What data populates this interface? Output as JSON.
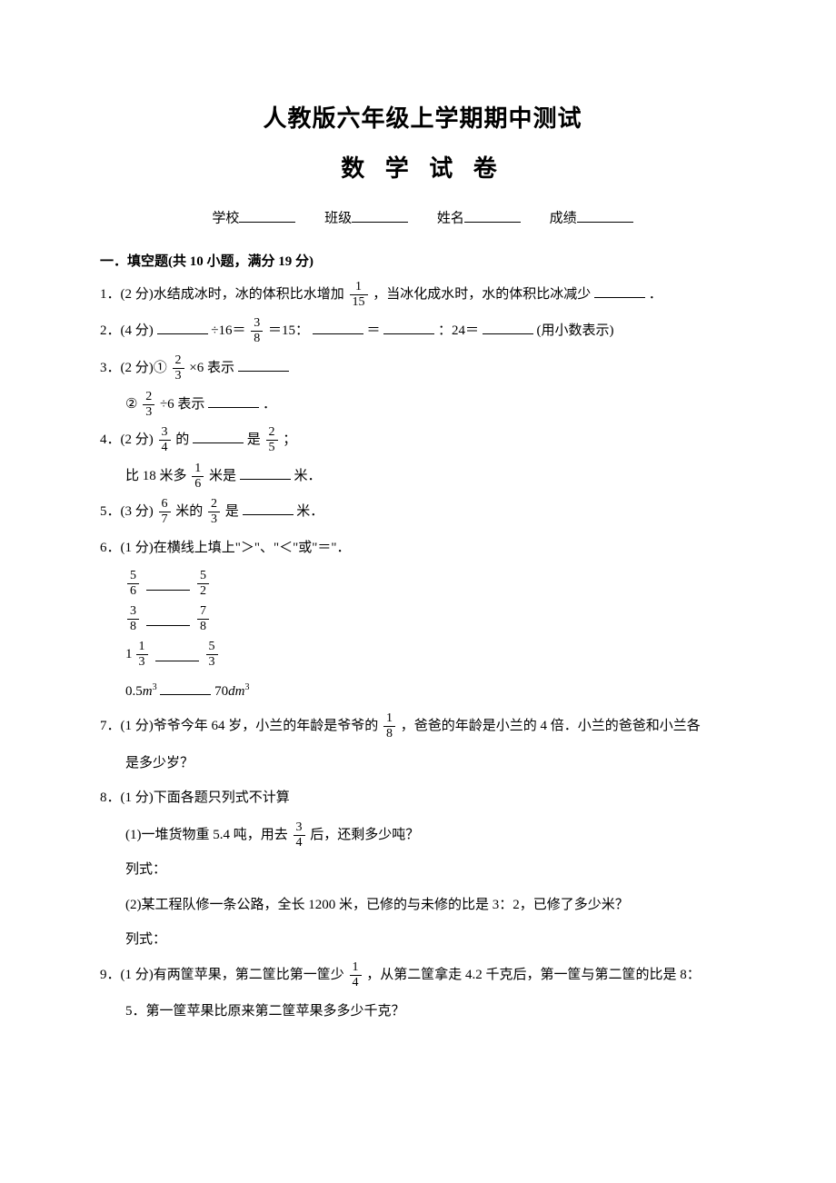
{
  "title_main": "人教版六年级上学期期中测试",
  "title_sub": "数 学 试 卷",
  "info": {
    "school": "学校",
    "class": "班级",
    "name": "姓名",
    "score": "成绩"
  },
  "section1": {
    "heading": "一．填空题(共 10 小题，满分 19 分)",
    "q1_a": "1．(2 分)水结成冰时，冰的体积比水增加",
    "q1_frac": {
      "num": "1",
      "den": "15"
    },
    "q1_b": "，当冰化成水时，水的体积比冰减少",
    "q1_c": "．",
    "q2_a": "2．(4 分)",
    "q2_b": "÷16＝",
    "q2_frac": {
      "num": "3",
      "den": "8"
    },
    "q2_c": "＝15：",
    "q2_d": "＝",
    "q2_e": "：24＝",
    "q2_f": "(用小数表示)",
    "q3_a": "3．(2 分)①",
    "q3_frac1": {
      "num": "2",
      "den": "3"
    },
    "q3_b": "×6 表示",
    "q3_c": "②",
    "q3_frac2": {
      "num": "2",
      "den": "3"
    },
    "q3_d": "÷6 表示",
    "q3_e": "．",
    "q4_a": "4．(2 分)",
    "q4_frac1": {
      "num": "3",
      "den": "4"
    },
    "q4_b": "的",
    "q4_c": "是",
    "q4_frac2": {
      "num": "2",
      "den": "5"
    },
    "q4_d": "；",
    "q4_e": "比 18 米多",
    "q4_frac3": {
      "num": "1",
      "den": "6"
    },
    "q4_f": "米是",
    "q4_g": "米．",
    "q5_a": "5．(3 分)",
    "q5_frac1": {
      "num": "6",
      "den": "7"
    },
    "q5_b": "米的",
    "q5_frac2": {
      "num": "2",
      "den": "3"
    },
    "q5_c": "是",
    "q5_d": "米．",
    "q6_a": "6．(1 分)在横线上填上\"＞\"、\"＜\"或\"＝\"．",
    "q6_rows": [
      {
        "l": {
          "num": "5",
          "den": "6"
        },
        "r": {
          "num": "5",
          "den": "2"
        }
      },
      {
        "l": {
          "num": "3",
          "den": "8"
        },
        "r": {
          "num": "7",
          "den": "8"
        }
      }
    ],
    "q6_row3": {
      "whole": "1",
      "lnum": "1",
      "lden": "3",
      "rnum": "5",
      "rden": "3"
    },
    "q6_row4_a": "0.5",
    "q6_row4_unit1": "m",
    "q6_row4_b": "70",
    "q6_row4_unit2": "dm",
    "q7_a": "7．(1 分)爷爷今年 64 岁，小兰的年龄是爷爷的",
    "q7_frac": {
      "num": "1",
      "den": "8"
    },
    "q7_b": "，爸爸的年龄是小兰的 4 倍．小兰的爸爸和小兰各",
    "q7_c": "是多少岁？",
    "q8_a": "8．(1 分)下面各题只列式不计算",
    "q8_b": "(1)一堆货物重 5.4 吨，用去",
    "q8_frac": {
      "num": "3",
      "den": "4"
    },
    "q8_c": "后，还剩多少吨？",
    "q8_d": "列式：",
    "q8_e": "(2)某工程队修一条公路，全长 1200 米，已修的与未修的比是 3：2，已修了多少米？",
    "q8_f": "列式：",
    "q9_a": "9．(1 分)有两筐苹果，第二筐比第一筐少",
    "q9_frac": {
      "num": "1",
      "den": "4"
    },
    "q9_b": "，从第二筐拿走 4.2 千克后，第一筐与第二筐的比是 8：",
    "q9_c": "5．第一筐苹果比原来第二筐苹果多多少千克？"
  }
}
